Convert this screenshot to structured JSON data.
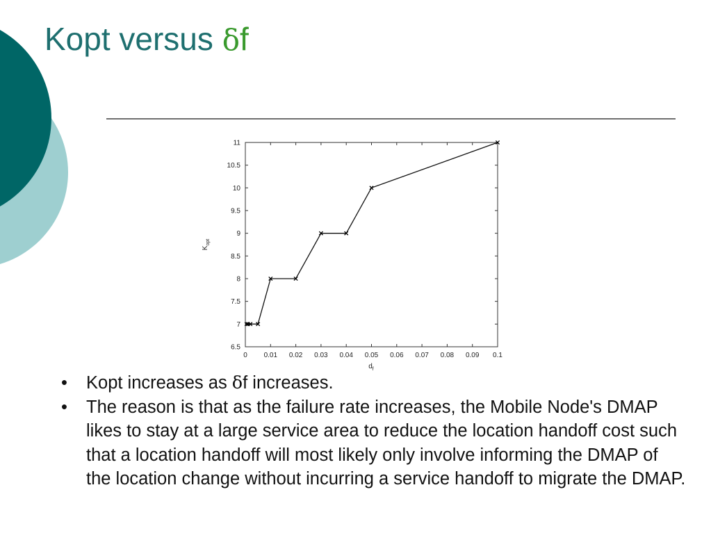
{
  "title": {
    "text": "Kopt versus ",
    "symbol": "δ",
    "suffix": "f"
  },
  "colors": {
    "teal_dark": "#006666",
    "teal_light": "#9ecfd0",
    "title": "#1e6f6f",
    "symbol": "#3a9a2e"
  },
  "chart_data": {
    "type": "line",
    "xlabel": "d_f",
    "ylabel": "K_opt",
    "xlim": [
      0,
      0.1
    ],
    "ylim": [
      6.5,
      11
    ],
    "xticks": [
      0,
      0.01,
      0.02,
      0.03,
      0.04,
      0.05,
      0.06,
      0.07,
      0.08,
      0.09,
      0.1
    ],
    "yticks": [
      6.5,
      7,
      7.5,
      8,
      8.5,
      9,
      9.5,
      10,
      10.5,
      11
    ],
    "marker": "x",
    "grid": false,
    "series": [
      {
        "x": [
          0.0005,
          0.001,
          0.002,
          0.005,
          0.01,
          0.02,
          0.03,
          0.04,
          0.05,
          0.1
        ],
        "y": [
          7,
          7,
          7,
          7,
          8,
          8,
          9,
          9,
          10,
          11
        ]
      }
    ]
  },
  "bullets": [
    {
      "pre": "Kopt increases as  ",
      "symbol": "δ",
      "post": "f increases."
    },
    {
      "text": "The reason is that as the failure rate increases, the Mobile Node's DMAP likes to stay at a large service area to reduce the location handoff cost such that a location handoff will most likely only involve informing the DMAP of the location change without incurring a service handoff to migrate the DMAP."
    }
  ]
}
